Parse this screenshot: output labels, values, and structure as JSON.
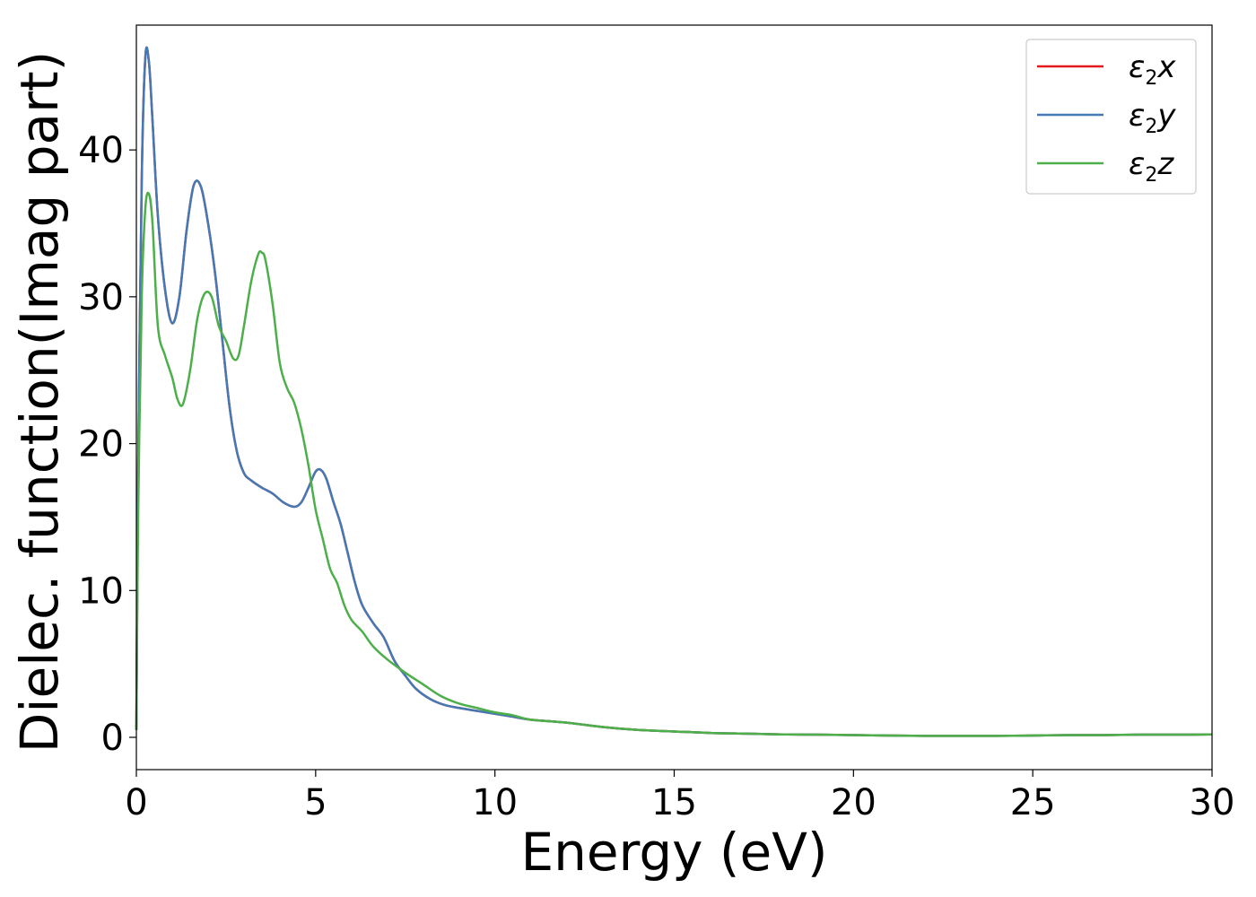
{
  "chart_data": {
    "type": "line",
    "title": "",
    "xlabel": "Energy (eV)",
    "ylabel": "Dielec. function(Imag part)",
    "xlim": [
      0,
      30
    ],
    "ylim": [
      -2.2,
      48.5
    ],
    "xticks": [
      0,
      5,
      10,
      15,
      20,
      25,
      30
    ],
    "yticks": [
      0,
      10,
      20,
      30,
      40
    ],
    "grid": false,
    "legend_position": "top-right",
    "series": [
      {
        "name": "ε2x",
        "legend_base": "ε",
        "legend_sub": "2",
        "legend_var": "x",
        "color": "#e41a1c",
        "x": [
          0,
          0.05,
          0.15,
          0.25,
          0.35,
          0.45,
          0.6,
          0.8,
          1.0,
          1.2,
          1.4,
          1.6,
          1.8,
          2.0,
          2.2,
          2.4,
          2.6,
          2.8,
          3.0,
          3.2,
          3.5,
          3.8,
          4.1,
          4.4,
          4.6,
          4.8,
          5.0,
          5.15,
          5.3,
          5.5,
          5.7,
          5.9,
          6.1,
          6.3,
          6.6,
          6.9,
          7.2,
          7.5,
          7.8,
          8.2,
          8.6,
          9.0,
          9.5,
          10,
          10.5,
          11,
          12,
          13,
          14,
          15,
          16,
          17,
          18,
          19,
          20,
          21,
          22,
          23,
          24,
          25,
          26,
          27,
          28,
          29,
          30
        ],
        "y": [
          0.5,
          18,
          38,
          46.3,
          46,
          42,
          35.5,
          30.5,
          28.2,
          30,
          34.5,
          37.6,
          37.5,
          35,
          31.5,
          27,
          22.5,
          19.5,
          18,
          17.5,
          17,
          16.6,
          16,
          15.7,
          16,
          17,
          18.1,
          18.2,
          17.6,
          16,
          14.5,
          12.5,
          10.5,
          9,
          7.8,
          6.8,
          5.2,
          4.2,
          3.3,
          2.6,
          2.2,
          2.0,
          1.8,
          1.6,
          1.4,
          1.2,
          1.0,
          0.7,
          0.5,
          0.4,
          0.3,
          0.25,
          0.2,
          0.18,
          0.15,
          0.12,
          0.1,
          0.1,
          0.1,
          0.12,
          0.15,
          0.15,
          0.18,
          0.18,
          0.2
        ]
      },
      {
        "name": "ε2y",
        "legend_base": "ε",
        "legend_sub": "2",
        "legend_var": "y",
        "color": "#4479b5",
        "x": [
          0,
          0.05,
          0.15,
          0.25,
          0.35,
          0.45,
          0.6,
          0.8,
          1.0,
          1.2,
          1.4,
          1.6,
          1.8,
          2.0,
          2.2,
          2.4,
          2.6,
          2.8,
          3.0,
          3.2,
          3.5,
          3.8,
          4.1,
          4.4,
          4.6,
          4.8,
          5.0,
          5.15,
          5.3,
          5.5,
          5.7,
          5.9,
          6.1,
          6.3,
          6.6,
          6.9,
          7.2,
          7.5,
          7.8,
          8.2,
          8.6,
          9.0,
          9.5,
          10,
          10.5,
          11,
          12,
          13,
          14,
          15,
          16,
          17,
          18,
          19,
          20,
          21,
          22,
          23,
          24,
          25,
          26,
          27,
          28,
          29,
          30
        ],
        "y": [
          0.5,
          18,
          38,
          46.3,
          46,
          42,
          35.5,
          30.5,
          28.2,
          30,
          34.5,
          37.6,
          37.5,
          35,
          31.5,
          27,
          22.5,
          19.5,
          18,
          17.5,
          17,
          16.6,
          16,
          15.7,
          16,
          17,
          18.1,
          18.2,
          17.6,
          16,
          14.5,
          12.5,
          10.5,
          9,
          7.8,
          6.8,
          5.2,
          4.2,
          3.3,
          2.6,
          2.2,
          2.0,
          1.8,
          1.6,
          1.4,
          1.2,
          1.0,
          0.7,
          0.5,
          0.4,
          0.3,
          0.25,
          0.2,
          0.18,
          0.15,
          0.12,
          0.1,
          0.1,
          0.1,
          0.12,
          0.15,
          0.15,
          0.18,
          0.18,
          0.2
        ]
      },
      {
        "name": "ε2z",
        "legend_base": "ε",
        "legend_sub": "2",
        "legend_var": "z",
        "color": "#4daf4a",
        "x": [
          0,
          0.05,
          0.15,
          0.25,
          0.35,
          0.45,
          0.6,
          0.8,
          1.0,
          1.15,
          1.3,
          1.5,
          1.7,
          1.9,
          2.1,
          2.3,
          2.5,
          2.7,
          2.85,
          3.0,
          3.2,
          3.4,
          3.5,
          3.6,
          3.8,
          4.0,
          4.2,
          4.4,
          4.6,
          4.8,
          5.0,
          5.2,
          5.4,
          5.6,
          5.8,
          6.0,
          6.3,
          6.6,
          7.0,
          7.5,
          8.0,
          8.5,
          9.0,
          9.5,
          10,
          10.5,
          11,
          12,
          13,
          14,
          15,
          16,
          17,
          18,
          19,
          20,
          21,
          22,
          23,
          24,
          25,
          26,
          27,
          28,
          29,
          30
        ],
        "y": [
          0.5,
          15,
          30,
          36,
          37,
          35,
          28,
          26,
          24.5,
          23,
          22.7,
          25,
          28.5,
          30.2,
          30,
          28,
          27,
          25.8,
          26,
          28,
          31,
          32.9,
          33,
          32.5,
          29.5,
          25.5,
          23.8,
          22.8,
          21,
          18.5,
          15.5,
          13.5,
          11.5,
          10.5,
          9,
          8,
          7.2,
          6.2,
          5.3,
          4.4,
          3.6,
          2.8,
          2.3,
          2.0,
          1.7,
          1.5,
          1.2,
          1.0,
          0.7,
          0.5,
          0.4,
          0.3,
          0.25,
          0.2,
          0.18,
          0.15,
          0.12,
          0.1,
          0.1,
          0.1,
          0.12,
          0.15,
          0.15,
          0.18,
          0.18,
          0.2
        ]
      }
    ]
  }
}
